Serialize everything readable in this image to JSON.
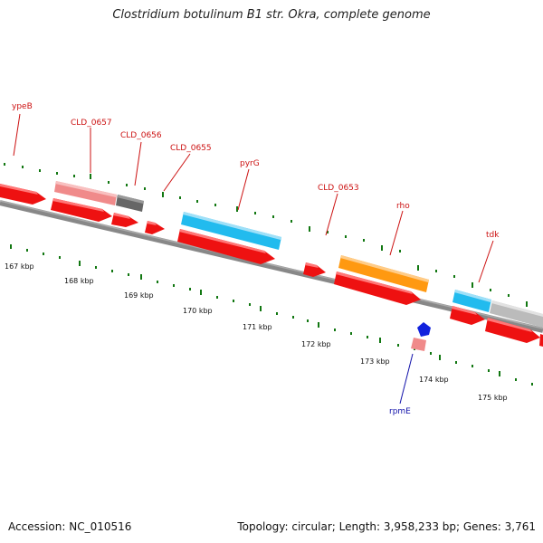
{
  "title": "Clostridium botulinum B1 str. Okra, complete genome",
  "footer": {
    "accession": "Accession: NC_010516",
    "summary": "Topology: circular; Length: 3,958,233 bp; Genes: 3,761"
  },
  "colors": {
    "cds_red": "#ee1111",
    "pink": "#f08a8a",
    "dark_gray": "#666666",
    "cyan": "#22bbee",
    "orange": "#ff9911",
    "light_gray": "#bbbbbb",
    "blue": "#1122dd",
    "tick_green": "#117711",
    "label_red": "#cc1111",
    "label_blue": "#1111aa"
  },
  "gene_labels": [
    {
      "name": "ypeB",
      "color": "red"
    },
    {
      "name": "CLD_0657",
      "color": "red"
    },
    {
      "name": "CLD_0656",
      "color": "red"
    },
    {
      "name": "CLD_0655",
      "color": "red"
    },
    {
      "name": "pyrG",
      "color": "red"
    },
    {
      "name": "CLD_0653",
      "color": "red"
    },
    {
      "name": "rho",
      "color": "red"
    },
    {
      "name": "tdk",
      "color": "red"
    },
    {
      "name": "rpmE",
      "color": "blue"
    }
  ],
  "kbp_labels": [
    "167 kbp",
    "168 kbp",
    "169 kbp",
    "170 kbp",
    "171 kbp",
    "172 kbp",
    "173 kbp",
    "174 kbp",
    "175 kbp"
  ]
}
